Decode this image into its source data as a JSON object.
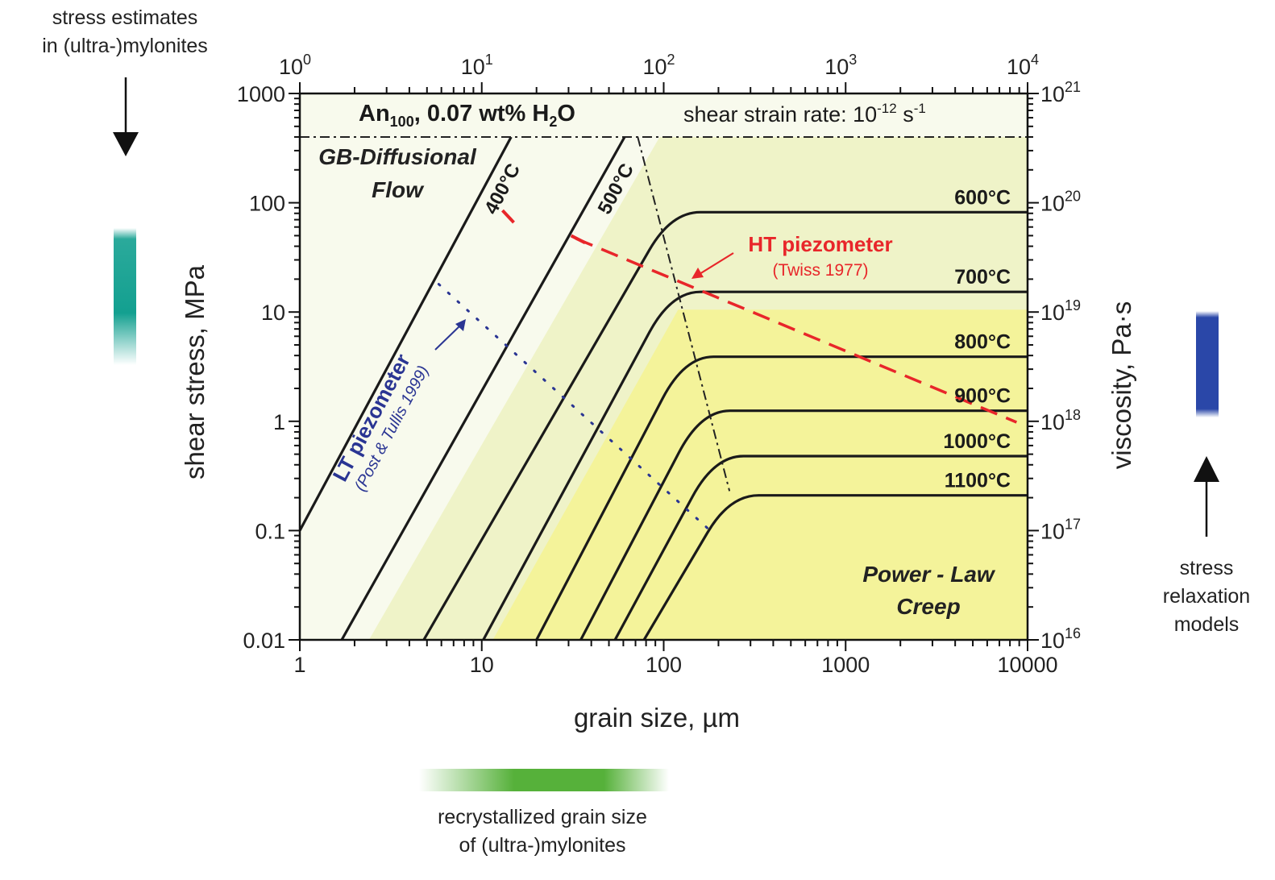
{
  "chart_data": {
    "type": "line",
    "x_scale": "log",
    "y_scale": "log",
    "xlim": [
      1,
      10000
    ],
    "ylim": [
      0.01,
      1000
    ],
    "xlabel": "grain size, µm",
    "ylabel": "shear stress, MPa",
    "y2label": "viscosity, Pa·s",
    "x_ticks": [
      "1",
      "10",
      "100",
      "1000",
      "10000"
    ],
    "y_ticks": [
      "0.01",
      "0.1",
      "1",
      "10",
      "100",
      "1000"
    ],
    "x2_ticks": [
      {
        "base": "10",
        "exp": "0"
      },
      {
        "base": "10",
        "exp": "1"
      },
      {
        "base": "10",
        "exp": "2"
      },
      {
        "base": "10",
        "exp": "3"
      },
      {
        "base": "10",
        "exp": "4"
      }
    ],
    "y2_ticks": [
      {
        "base": "10",
        "exp": "16"
      },
      {
        "base": "10",
        "exp": "17"
      },
      {
        "base": "10",
        "exp": "18"
      },
      {
        "base": "10",
        "exp": "19"
      },
      {
        "base": "10",
        "exp": "20"
      },
      {
        "base": "10",
        "exp": "21"
      }
    ],
    "title_left": {
      "pre": "An",
      "sub": "100",
      "mid": ", 0.07 wt% H",
      "sub2": "2",
      "post": "O"
    },
    "title_right": {
      "pre": "shear strain rate: 10",
      "sup": "-12",
      "post": " s",
      "sup2": "-1"
    },
    "stress_cap": 400,
    "isotherms": [
      {
        "name": "400°C",
        "x_at_cap": 60,
        "plateau": null,
        "label_style": "rotated"
      },
      {
        "name": "500°C",
        "x_at_cap": 60,
        "plateau": null,
        "label_style": "rotated"
      },
      {
        "name": "600°C",
        "x_at_cap": 60,
        "plateau": 82,
        "label_style": "right"
      },
      {
        "name": "700°C",
        "x_at_cap": 60,
        "plateau": 15.3,
        "label_style": "right"
      },
      {
        "name": "800°C",
        "x_at_cap": 60,
        "plateau": 3.9,
        "label_style": "right"
      },
      {
        "name": "900°C",
        "x_at_cap": 60,
        "plateau": 1.25,
        "label_style": "right"
      },
      {
        "name": "1000°C",
        "x_at_cap": 60,
        "plateau": 0.48,
        "label_style": "right"
      },
      {
        "name": "1100°C",
        "x_at_cap": 60,
        "plateau": 0.21,
        "label_style": "right"
      }
    ],
    "diffusion_lines": [
      {
        "name": "400°C",
        "points": [
          [
            1,
            0.1
          ],
          [
            14.5,
            400
          ]
        ]
      },
      {
        "name": "500°C",
        "points": [
          [
            1.7,
            0.01
          ],
          [
            61,
            400
          ]
        ]
      },
      {
        "name": "600°C",
        "points": [
          [
            4.8,
            0.01
          ],
          [
            110,
            82
          ]
        ]
      },
      {
        "name": "700°C",
        "points": [
          [
            10.2,
            0.01
          ],
          [
            110,
            15.3
          ]
        ]
      },
      {
        "name": "800°C",
        "points": [
          [
            20,
            0.01
          ],
          [
            130,
            3.9
          ]
        ]
      },
      {
        "name": "900°C",
        "points": [
          [
            35,
            0.01
          ],
          [
            160,
            1.25
          ]
        ]
      },
      {
        "name": "1000°C",
        "points": [
          [
            54,
            0.01
          ],
          [
            190,
            0.48
          ]
        ]
      },
      {
        "name": "1100°C",
        "points": [
          [
            78,
            0.01
          ],
          [
            230,
            0.21
          ]
        ]
      }
    ],
    "boundary_line": {
      "points": [
        [
          72,
          400
        ],
        [
          230,
          0.23
        ]
      ]
    },
    "ht_piezometer": {
      "name": "HT piezometer",
      "ref": "(Twiss 1977)",
      "points": [
        [
          33,
          47
        ],
        [
          8700,
          0.98
        ]
      ],
      "segments": [
        [
          [
            13,
            85
          ],
          [
            15,
            66
          ]
        ],
        [
          [
            31,
            50
          ],
          [
            37,
            43
          ]
        ]
      ]
    },
    "lt_piezometer": {
      "name": "LT piezometer",
      "ref": "(Post & Tullis 1999)",
      "points": [
        [
          5.8,
          18
        ],
        [
          180,
          0.1
        ]
      ]
    },
    "region_labels": [
      {
        "line1": "GB-Diffusional",
        "line2": "Flow"
      },
      {
        "line1": "Power - Law",
        "line2": "Creep"
      }
    ],
    "colors": {
      "region_diffusion": "#f8faed",
      "region_mid": "#eff3c8",
      "region_creep": "#f4f39a",
      "isotherm": "#1a1a1a",
      "ht_piezometer": "#e8262a",
      "lt_piezometer": "#2a3593"
    }
  },
  "annotations": {
    "left_top": [
      "stress estimates",
      "in (ultra-)mylonites"
    ],
    "right_bottom": [
      "stress",
      "relaxation",
      "models"
    ],
    "bottom": [
      "recrystallized grain size",
      "of (ultra-)mylonites"
    ]
  },
  "bars": {
    "teal": "#13a090",
    "blue": "#2a47a8",
    "green": "#56b13a"
  }
}
